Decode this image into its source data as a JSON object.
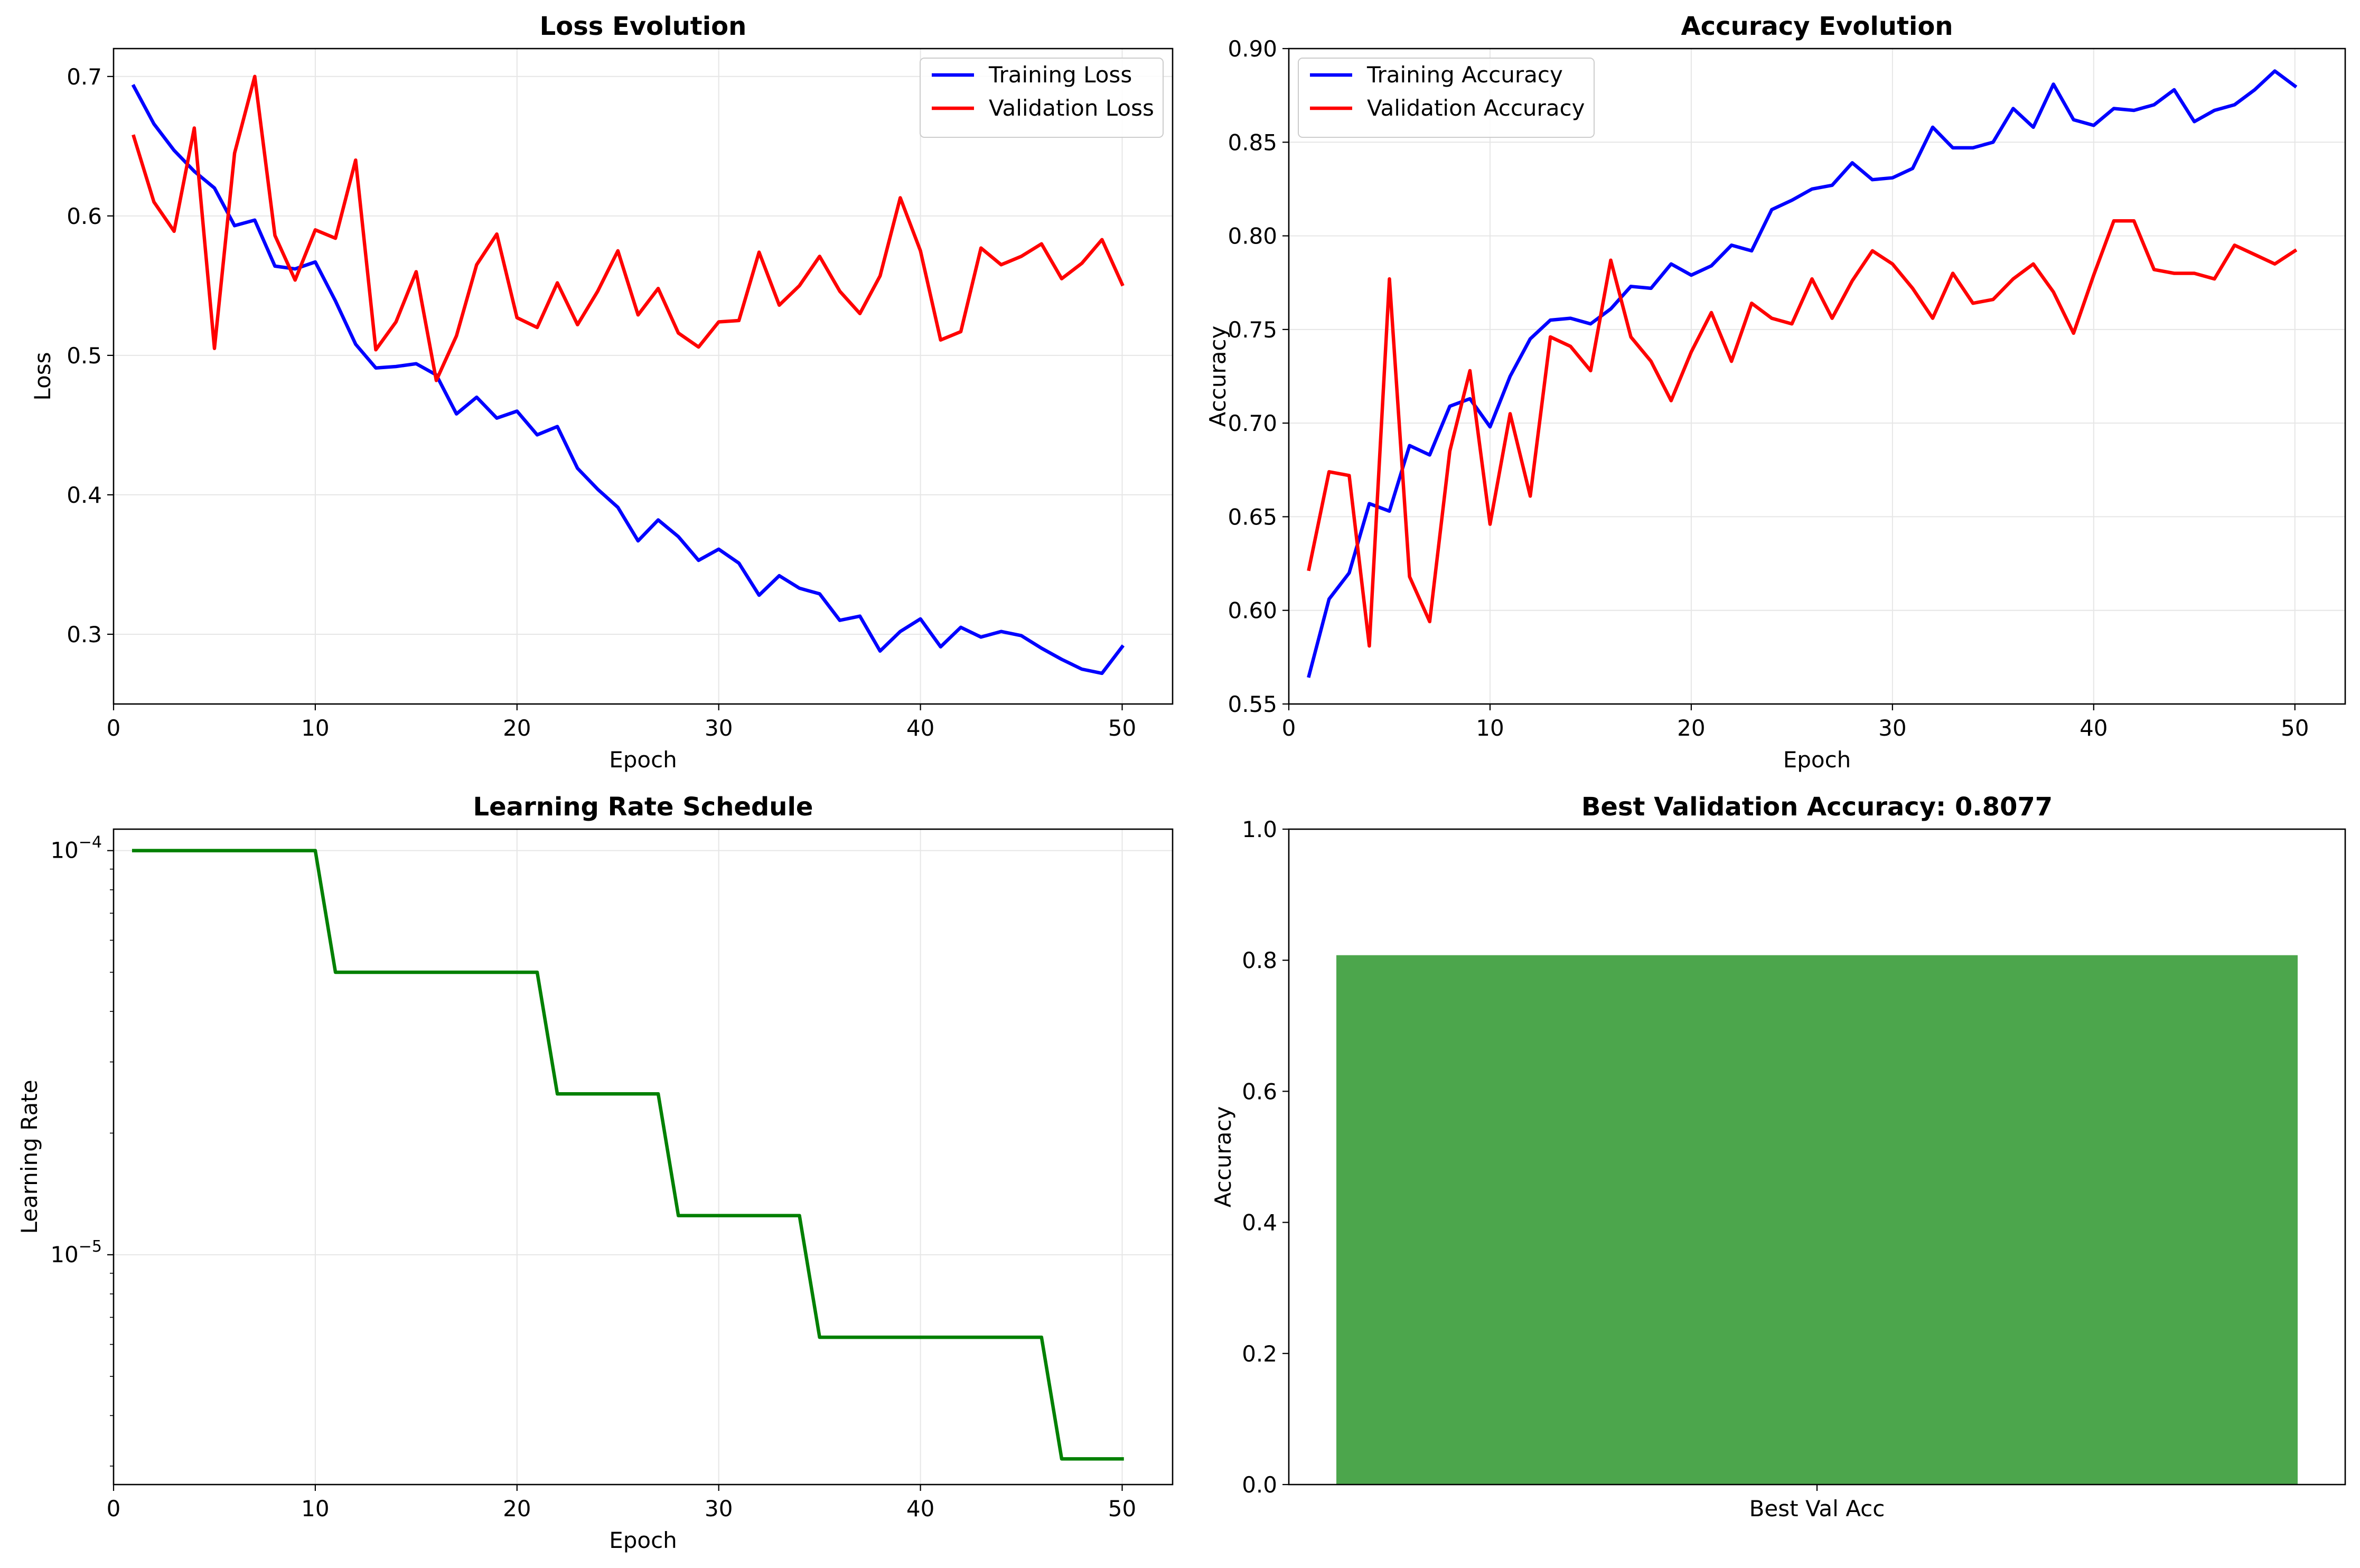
{
  "colors": {
    "training": "#0000ff",
    "validation": "#ff0000",
    "learning_rate": "#008000",
    "bar": "#4ca64c",
    "grid": "#e6e6e6"
  },
  "chart_data": [
    {
      "type": "line",
      "title": "Loss Evolution",
      "xlabel": "Epoch",
      "ylabel": "Loss",
      "xlim": [
        0,
        52.5
      ],
      "ylim": [
        0.25,
        0.72
      ],
      "xticks": [
        0,
        10,
        20,
        30,
        40,
        50
      ],
      "yticks": [
        0.3,
        0.4,
        0.5,
        0.6,
        0.7
      ],
      "grid": true,
      "legend": "upper right",
      "x": [
        1,
        2,
        3,
        4,
        5,
        6,
        7,
        8,
        9,
        10,
        11,
        12,
        13,
        14,
        15,
        16,
        17,
        18,
        19,
        20,
        21,
        22,
        23,
        24,
        25,
        26,
        27,
        28,
        29,
        30,
        31,
        32,
        33,
        34,
        35,
        36,
        37,
        38,
        39,
        40,
        41,
        42,
        43,
        44,
        45,
        46,
        47,
        48,
        49,
        50
      ],
      "series": [
        {
          "name": "Training Loss",
          "color": "#0000ff",
          "values": [
            0.693,
            0.666,
            0.647,
            0.632,
            0.62,
            0.593,
            0.597,
            0.564,
            0.562,
            0.567,
            0.539,
            0.508,
            0.491,
            0.492,
            0.494,
            0.486,
            0.458,
            0.47,
            0.455,
            0.46,
            0.443,
            0.449,
            0.419,
            0.404,
            0.391,
            0.367,
            0.382,
            0.37,
            0.353,
            0.361,
            0.351,
            0.328,
            0.342,
            0.333,
            0.329,
            0.31,
            0.313,
            0.288,
            0.302,
            0.311,
            0.291,
            0.305,
            0.298,
            0.302,
            0.299,
            0.29,
            0.282,
            0.275,
            0.272,
            0.291
          ]
        },
        {
          "name": "Validation Loss",
          "color": "#ff0000",
          "values": [
            0.657,
            0.61,
            0.589,
            0.663,
            0.505,
            0.645,
            0.7,
            0.586,
            0.554,
            0.59,
            0.584,
            0.64,
            0.504,
            0.524,
            0.56,
            0.482,
            0.514,
            0.565,
            0.587,
            0.527,
            0.52,
            0.552,
            0.522,
            0.546,
            0.575,
            0.529,
            0.548,
            0.516,
            0.506,
            0.524,
            0.525,
            0.574,
            0.536,
            0.55,
            0.571,
            0.546,
            0.53,
            0.557,
            0.613,
            0.575,
            0.511,
            0.517,
            0.577,
            0.565,
            0.571,
            0.58,
            0.555,
            0.566,
            0.583,
            0.551
          ]
        }
      ]
    },
    {
      "type": "line",
      "title": "Accuracy Evolution",
      "xlabel": "Epoch",
      "ylabel": "Accuracy",
      "xlim": [
        0,
        52.5
      ],
      "ylim": [
        0.55,
        0.9
      ],
      "xticks": [
        0,
        10,
        20,
        30,
        40,
        50
      ],
      "yticks": [
        0.55,
        0.6,
        0.65,
        0.7,
        0.75,
        0.8,
        0.85,
        0.9
      ],
      "grid": true,
      "legend": "upper left",
      "x": [
        1,
        2,
        3,
        4,
        5,
        6,
        7,
        8,
        9,
        10,
        11,
        12,
        13,
        14,
        15,
        16,
        17,
        18,
        19,
        20,
        21,
        22,
        23,
        24,
        25,
        26,
        27,
        28,
        29,
        30,
        31,
        32,
        33,
        34,
        35,
        36,
        37,
        38,
        39,
        40,
        41,
        42,
        43,
        44,
        45,
        46,
        47,
        48,
        49,
        50
      ],
      "series": [
        {
          "name": "Training Accuracy",
          "color": "#0000ff",
          "values": [
            0.565,
            0.606,
            0.62,
            0.657,
            0.653,
            0.688,
            0.683,
            0.709,
            0.713,
            0.698,
            0.725,
            0.745,
            0.755,
            0.756,
            0.753,
            0.761,
            0.773,
            0.772,
            0.785,
            0.779,
            0.784,
            0.795,
            0.792,
            0.814,
            0.819,
            0.825,
            0.827,
            0.839,
            0.83,
            0.831,
            0.836,
            0.858,
            0.847,
            0.847,
            0.85,
            0.868,
            0.858,
            0.881,
            0.862,
            0.859,
            0.868,
            0.867,
            0.87,
            0.878,
            0.861,
            0.867,
            0.87,
            0.878,
            0.888,
            0.88
          ]
        },
        {
          "name": "Validation Accuracy",
          "color": "#ff0000",
          "values": [
            0.622,
            0.674,
            0.672,
            0.581,
            0.777,
            0.618,
            0.594,
            0.685,
            0.728,
            0.646,
            0.705,
            0.661,
            0.746,
            0.741,
            0.728,
            0.787,
            0.746,
            0.733,
            0.712,
            0.738,
            0.759,
            0.733,
            0.764,
            0.756,
            0.753,
            0.777,
            0.756,
            0.776,
            0.792,
            0.785,
            0.772,
            0.756,
            0.78,
            0.764,
            0.766,
            0.777,
            0.785,
            0.77,
            0.748,
            0.779,
            0.808,
            0.808,
            0.782,
            0.78,
            0.78,
            0.777,
            0.795,
            0.79,
            0.785,
            0.792
          ]
        }
      ]
    },
    {
      "type": "line",
      "title": "Learning Rate Schedule",
      "xlabel": "Epoch",
      "ylabel": "Learning Rate",
      "yscale": "log",
      "xlim": [
        0,
        52.5
      ],
      "ylim": [
        2.7e-06,
        0.000113
      ],
      "xticks": [
        0,
        10,
        20,
        30,
        40,
        50
      ],
      "yticks": [
        1e-05,
        0.0001
      ],
      "ytick_labels": [
        {
          "base": "10",
          "exp": "−5"
        },
        {
          "base": "10",
          "exp": "−4"
        }
      ],
      "grid": true,
      "x": [
        1,
        2,
        3,
        4,
        5,
        6,
        7,
        8,
        9,
        10,
        11,
        12,
        13,
        14,
        15,
        16,
        17,
        18,
        19,
        20,
        21,
        22,
        23,
        24,
        25,
        26,
        27,
        28,
        29,
        30,
        31,
        32,
        33,
        34,
        35,
        36,
        37,
        38,
        39,
        40,
        41,
        42,
        43,
        44,
        45,
        46,
        47,
        48,
        49,
        50
      ],
      "series": [
        {
          "color": "#008000",
          "values": [
            0.0001,
            0.0001,
            0.0001,
            0.0001,
            0.0001,
            0.0001,
            0.0001,
            0.0001,
            0.0001,
            0.0001,
            5e-05,
            5e-05,
            5e-05,
            5e-05,
            5e-05,
            5e-05,
            5e-05,
            5e-05,
            5e-05,
            5e-05,
            5e-05,
            2.5e-05,
            2.5e-05,
            2.5e-05,
            2.5e-05,
            2.5e-05,
            2.5e-05,
            1.25e-05,
            1.25e-05,
            1.25e-05,
            1.25e-05,
            1.25e-05,
            1.25e-05,
            1.25e-05,
            6.25e-06,
            6.25e-06,
            6.25e-06,
            6.25e-06,
            6.25e-06,
            6.25e-06,
            6.25e-06,
            6.25e-06,
            6.25e-06,
            6.25e-06,
            6.25e-06,
            6.25e-06,
            3.125e-06,
            3.125e-06,
            3.125e-06,
            3.125e-06
          ]
        }
      ]
    },
    {
      "type": "bar",
      "title": "Best Validation Accuracy: 0.8077",
      "xlabel": "",
      "ylabel": "Accuracy",
      "categories": [
        "Best Val Acc"
      ],
      "values": [
        0.8077
      ],
      "ylim": [
        0,
        1
      ],
      "yticks": [
        0.0,
        0.2,
        0.4,
        0.6,
        0.8,
        1.0
      ],
      "grid": false,
      "color": "#4ca64c"
    }
  ]
}
